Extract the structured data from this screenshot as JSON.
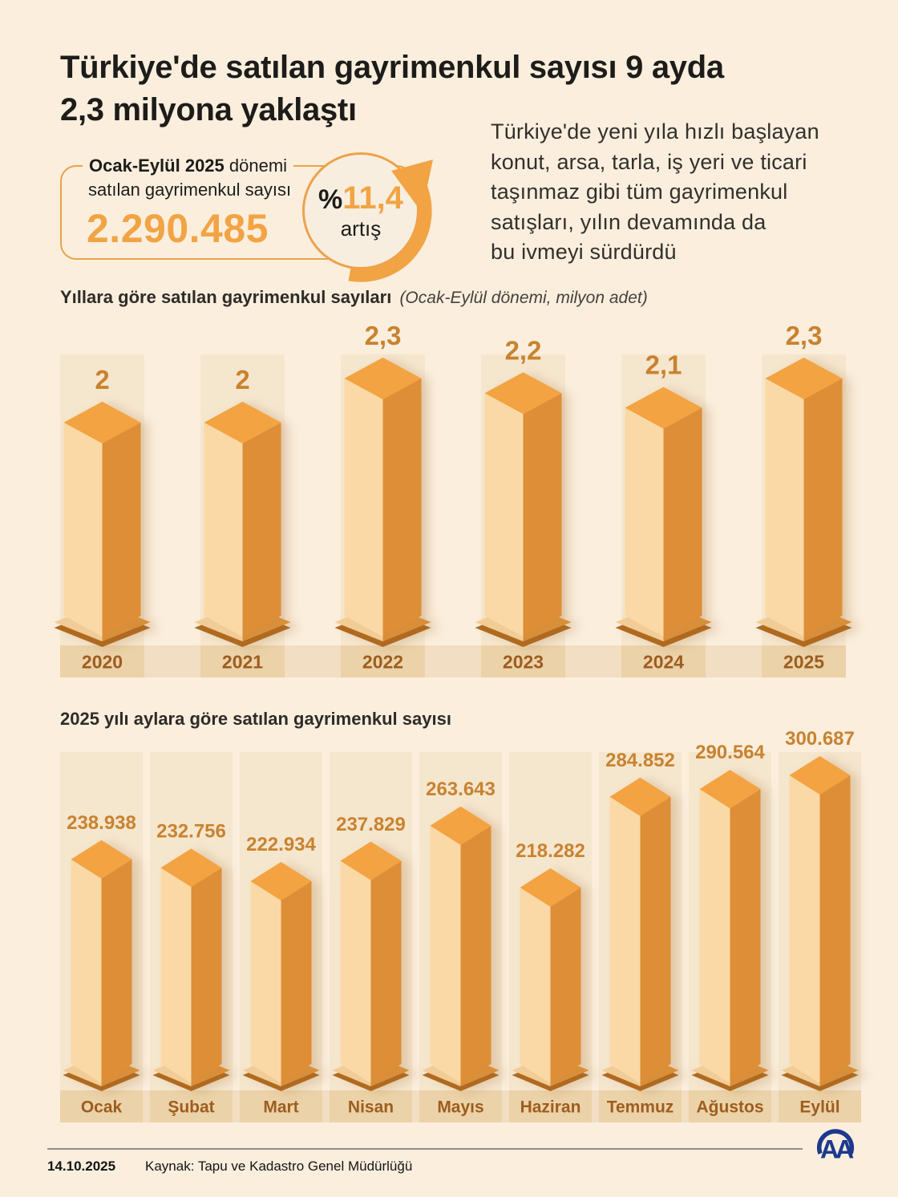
{
  "title": {
    "lines": [
      "Türkiye'de satılan gayrimenkul sayısı 9 ayda",
      "2,3 milyona yaklaştı"
    ]
  },
  "stat_box": {
    "label_bold": "Ocak-Eylül 2025",
    "label_rest": " dönemi",
    "label_line2": "satılan gayrimenkul sayısı",
    "value": "2.290.485"
  },
  "badge": {
    "percent_sign": "%",
    "value": "11,4",
    "label": "artış"
  },
  "intro": {
    "lines": [
      "Türkiye'de yeni yıla hızlı başlayan",
      "konut, arsa, tarla, iş yeri ve ticari",
      "taşınmaz gibi tüm gayrimenkul",
      "satışları, yılın devamında da",
      "bu ivmeyi sürdürdü"
    ]
  },
  "chart_data": [
    {
      "type": "bar",
      "variant": "3d-column",
      "title": "Yıllara göre satılan gayrimenkul sayıları",
      "subtitle": "(Ocak-Eylül dönemi, milyon adet)",
      "unit": "milyon adet",
      "categories": [
        "2020",
        "2021",
        "2022",
        "2023",
        "2024",
        "2025"
      ],
      "values": [
        2,
        2,
        2.3,
        2.2,
        2.1,
        2.3
      ],
      "value_labels": [
        "2",
        "2",
        "2,3",
        "2,2",
        "2,1",
        "2,3"
      ],
      "ylim": [
        0,
        2.3
      ],
      "grid": false,
      "legend": false
    },
    {
      "type": "bar",
      "variant": "3d-column",
      "title": "2025 yılı aylara göre satılan gayrimenkul sayısı",
      "subtitle": "",
      "categories": [
        "Ocak",
        "Şubat",
        "Mart",
        "Nisan",
        "Mayıs",
        "Haziran",
        "Temmuz",
        "Ağustos",
        "Eylül"
      ],
      "values": [
        238938,
        232756,
        222934,
        237829,
        263643,
        218282,
        284852,
        290564,
        300687
      ],
      "value_labels": [
        "238.938",
        "232.756",
        "222.934",
        "237.829",
        "263.643",
        "218.282",
        "284.852",
        "290.564",
        "300.687"
      ],
      "ylim": [
        0,
        300687
      ],
      "grid": false,
      "legend": false
    }
  ],
  "footer": {
    "date": "14.10.2025",
    "source": "Kaynak: Tapu ve Kadastro Genel Müdürlüğü",
    "logo_text": "AA"
  },
  "colors": {
    "page_bg": "#FBEEDD",
    "accent_orange": "#F2A444",
    "bar_front": "#FBD9A6",
    "bar_side": "#DE8E36",
    "bar_top": "#F3A341",
    "pedestal_left": "#F2CC96",
    "pedestal_right": "#D98E3A",
    "pedestal_rim": "#B06A1F",
    "band": "#F5E6CE",
    "strip": "#F2DEC2",
    "strip_band": "#ECD2A8",
    "value_label": "#C9822F",
    "axis_label": "#9D5D1F",
    "text_dark": "#1D1C1A",
    "logo_navy": "#1C398E",
    "footer_line": "#8F8F8F"
  }
}
